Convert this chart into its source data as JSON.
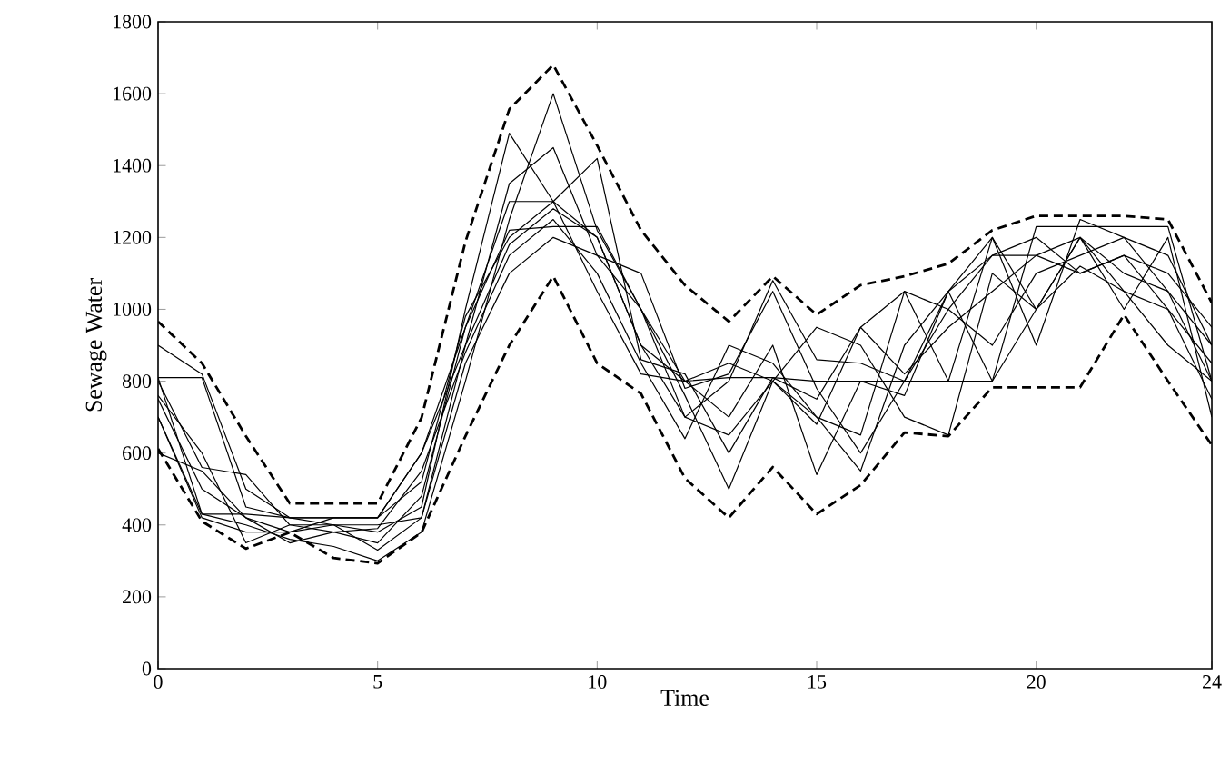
{
  "chart_data": {
    "type": "line",
    "xlabel": "Time",
    "ylabel": "Sewage Water",
    "x": [
      0,
      1,
      2,
      3,
      4,
      5,
      6,
      7,
      8,
      9,
      10,
      11,
      12,
      13,
      14,
      15,
      16,
      17,
      18,
      19,
      20,
      21,
      22,
      23,
      24
    ],
    "xlim": [
      0,
      24
    ],
    "ylim": [
      0,
      1800
    ],
    "xticks": [
      0,
      5,
      10,
      15,
      20,
      24
    ],
    "yticks": [
      0,
      200,
      400,
      600,
      800,
      1000,
      1200,
      1400,
      1600,
      1800
    ],
    "grid": false,
    "marker": "none",
    "line_style": "solid",
    "series": [
      {
        "color": "#000000",
        "values": [
          810,
          810,
          450,
          420,
          400,
          380,
          450,
          1000,
          1490,
          1300,
          1200,
          900,
          800,
          850,
          800,
          950,
          900,
          700,
          650,
          1100,
          1000,
          1200,
          1100,
          1050,
          900
        ]
      },
      {
        "color": "#000000",
        "values": [
          700,
          430,
          400,
          360,
          340,
          300,
          380,
          800,
          1250,
          1600,
          1220,
          1000,
          760,
          500,
          800,
          700,
          550,
          900,
          1050,
          800,
          1000,
          1200,
          1000,
          1200,
          700
        ]
      },
      {
        "color": "#000000",
        "values": [
          900,
          820,
          500,
          420,
          420,
          420,
          600,
          900,
          1350,
          1450,
          1150,
          1100,
          780,
          820,
          1050,
          780,
          600,
          800,
          1000,
          1150,
          1150,
          1100,
          1150,
          1100,
          950
        ]
      },
      {
        "color": "#000000",
        "values": [
          600,
          550,
          420,
          350,
          380,
          350,
          480,
          950,
          1300,
          1300,
          1420,
          860,
          820,
          600,
          810,
          750,
          950,
          1050,
          1000,
          900,
          1100,
          1150,
          1200,
          1050,
          800
        ]
      },
      {
        "color": "#000000",
        "values": [
          760,
          600,
          350,
          400,
          400,
          400,
          420,
          850,
          1100,
          1200,
          1150,
          1000,
          700,
          650,
          800,
          680,
          950,
          820,
          950,
          1050,
          1150,
          1200,
          1050,
          1000,
          850
        ]
      },
      {
        "color": "#000000",
        "values": [
          800,
          560,
          540,
          400,
          380,
          390,
          550,
          880,
          1150,
          1250,
          1100,
          850,
          640,
          900,
          850,
          700,
          650,
          1050,
          800,
          1200,
          900,
          1250,
          1200,
          1150,
          900
        ]
      },
      {
        "color": "#000000",
        "values": [
          700,
          420,
          380,
          380,
          400,
          330,
          420,
          900,
          1180,
          1280,
          1200,
          900,
          700,
          800,
          1080,
          860,
          850,
          800,
          1050,
          1150,
          1200,
          1100,
          1150,
          1000,
          750
        ]
      },
      {
        "color": "#000000",
        "values": [
          750,
          500,
          420,
          380,
          420,
          420,
          520,
          980,
          1200,
          1300,
          1050,
          820,
          800,
          700,
          900,
          540,
          800,
          760,
          1050,
          1200,
          1000,
          1120,
          1050,
          900,
          800
        ]
      },
      {
        "color": "#000000",
        "values": [
          810,
          430,
          430,
          420,
          420,
          420,
          600,
          950,
          1220,
          1230,
          1230,
          1000,
          800,
          810,
          810,
          800,
          800,
          800,
          800,
          800,
          1230,
          1230,
          1230,
          1230,
          800
        ]
      },
      {
        "color": "#000000",
        "line_style": "dashed",
        "values": [
          966,
          850,
          647,
          460,
          460,
          460,
          698,
          1188,
          1557,
          1680,
          1456,
          1220,
          1067,
          966,
          1092,
          985,
          1067,
          1092,
          1127,
          1220,
          1260,
          1260,
          1260,
          1250,
          1018
        ]
      },
      {
        "color": "#000000",
        "line_style": "dashed",
        "values": [
          612,
          410,
          334,
          379,
          308,
          293,
          379,
          647,
          900,
          1092,
          850,
          765,
          530,
          420,
          561,
          430,
          511,
          657,
          647,
          783,
          783,
          783,
          985,
          800,
          622
        ]
      }
    ]
  }
}
